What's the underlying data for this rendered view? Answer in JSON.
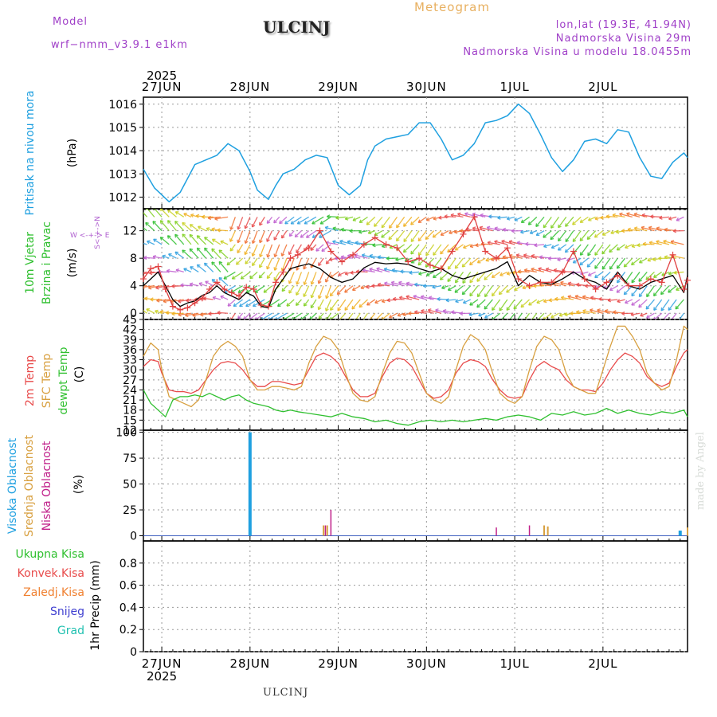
{
  "header": {
    "model_label": "Model",
    "model_name": "wrf−nmm_v3.9.1  e1km",
    "station": "ULCINJ",
    "title": "Meteogram",
    "coords": "lon,lat (19.3E, 41.94N)",
    "elevation": "Nadmorska Visina 29m",
    "model_elevation": "Nadmorska Visina u modelu 18.0455m"
  },
  "footer": {
    "station": "ULCINJ",
    "credit": "made by Angel"
  },
  "colors": {
    "pressure": "#1fa0e0",
    "t2m": "#e84a4a",
    "sfc": "#d8a040",
    "dewpt": "#30c030",
    "cloud_high": "#1fa0e0",
    "cloud_mid": "#d8a040",
    "cloud_low": "#c0208a",
    "wind_speed": "#000000",
    "wind_gust": "#e04040",
    "compass": "#b060d0",
    "precip_total": "#30c030",
    "precip_conv": "#e84a4a",
    "precip_frz": "#f08030",
    "precip_snow": "#4040d0",
    "precip_hail": "#20c0b0"
  },
  "chart_data": [
    {
      "type": "line",
      "panel": "pressure",
      "ylabel_lines": [
        "Pritisak na nivou mora",
        "(hPa)"
      ],
      "ylim": [
        1011.5,
        1016.3
      ],
      "yticks": [
        "1012",
        "1013",
        "1014",
        "1015",
        "1016"
      ],
      "grid": true,
      "x_unit": "hours from 27 JUN 2025 00 UTC",
      "xlim": [
        -5,
        143
      ],
      "x_dates": [
        "27JUN",
        "28JUN",
        "29JUN",
        "30JUN",
        "1JUL",
        "2JUL"
      ],
      "x_year": "2025",
      "series": [
        {
          "name": "Pritisak na nivou mora",
          "x": [
            -5,
            -2,
            2,
            5,
            7,
            9,
            12,
            15,
            18,
            21,
            24,
            26,
            29,
            31,
            33,
            36,
            39,
            42,
            45,
            48,
            51,
            54,
            56,
            58,
            61,
            64,
            67,
            70,
            73,
            76,
            79,
            82,
            85,
            88,
            91,
            94,
            97,
            100,
            103,
            106,
            109,
            112,
            115,
            118,
            121,
            124,
            127,
            130,
            133,
            136,
            139,
            142,
            143
          ],
          "values": [
            1013.2,
            1012.4,
            1011.8,
            1012.2,
            1012.8,
            1013.4,
            1013.6,
            1013.8,
            1014.3,
            1014.0,
            1013.1,
            1012.3,
            1011.9,
            1012.5,
            1013.0,
            1013.2,
            1013.6,
            1013.8,
            1013.7,
            1012.5,
            1012.1,
            1012.5,
            1013.6,
            1014.2,
            1014.5,
            1014.6,
            1014.7,
            1015.2,
            1015.2,
            1014.5,
            1013.6,
            1013.8,
            1014.3,
            1015.2,
            1015.3,
            1015.5,
            1016.0,
            1015.6,
            1014.7,
            1013.7,
            1013.1,
            1013.6,
            1014.4,
            1014.5,
            1014.3,
            1014.9,
            1014.8,
            1013.7,
            1012.9,
            1012.8,
            1013.5,
            1013.9,
            1013.7
          ]
        }
      ]
    },
    {
      "type": "line",
      "panel": "wind",
      "ylabel_lines": [
        "10m Vjetar",
        "Brzina i Pravac",
        "(m/s)"
      ],
      "compass_label": "W  <-+->  E",
      "compass_vert": "S<-+->N",
      "ylim": [
        -0.9,
        15.2
      ],
      "yticks": [
        "0",
        "4",
        "8",
        "12"
      ],
      "grid": true,
      "xlim": [
        -5,
        143
      ],
      "series": [
        {
          "name": "brzina",
          "x": [
            -5,
            -3,
            -1,
            1,
            3,
            5,
            7,
            9,
            11,
            13,
            15,
            17,
            19,
            21,
            23,
            25,
            27,
            29,
            31,
            33,
            35,
            37,
            40,
            43,
            46,
            49,
            52,
            55,
            58,
            61,
            64,
            67,
            70,
            73,
            76,
            79,
            82,
            85,
            88,
            91,
            94,
            97,
            100,
            103,
            106,
            109,
            112,
            115,
            118,
            121,
            124,
            127,
            130,
            133,
            136,
            139,
            142,
            143
          ],
          "values": [
            4,
            5,
            6,
            4,
            2,
            1,
            1.5,
            1.8,
            2.6,
            3.0,
            4.0,
            3.0,
            2.5,
            2.0,
            3.0,
            2.5,
            1.0,
            0.8,
            3.5,
            5.0,
            6.5,
            6.8,
            7.2,
            6.5,
            5.2,
            4.5,
            5.0,
            6.6,
            7.4,
            7.2,
            7.3,
            7.1,
            6.5,
            6.0,
            6.5,
            5.5,
            5.0,
            5.5,
            6.0,
            6.5,
            7.5,
            4.0,
            5.5,
            4.5,
            4.2,
            5.0,
            6.0,
            5.0,
            4.5,
            3.5,
            6.0,
            4.0,
            3.5,
            4.5,
            5.0,
            5.5,
            3.0,
            5.5
          ]
        },
        {
          "name": "udari",
          "x": [
            -5,
            -3,
            -1,
            1,
            3,
            5,
            7,
            9,
            11,
            13,
            15,
            17,
            19,
            21,
            23,
            25,
            27,
            29,
            31,
            33,
            35,
            37,
            40,
            43,
            46,
            49,
            52,
            55,
            58,
            61,
            64,
            67,
            70,
            73,
            76,
            79,
            82,
            85,
            88,
            91,
            94,
            97,
            100,
            103,
            106,
            109,
            112,
            115,
            118,
            121,
            124,
            127,
            130,
            133,
            136,
            139,
            142,
            143
          ],
          "values": [
            5,
            6.5,
            6.8,
            3.5,
            1,
            0.5,
            0.8,
            1.5,
            2.2,
            3.5,
            4.5,
            3.5,
            3.0,
            2.5,
            3.8,
            3.5,
            1.2,
            1.0,
            4.5,
            6.0,
            8.0,
            8.5,
            9.5,
            12.0,
            9.0,
            7.5,
            8.5,
            10.0,
            11.0,
            10.0,
            9.5,
            7.5,
            8.0,
            7.0,
            6.5,
            9.0,
            11.5,
            14.0,
            9.0,
            8.0,
            9.5,
            5.0,
            4.0,
            4.5,
            4.5,
            6.0,
            9.0,
            5.0,
            3.5,
            4.5,
            5.5,
            4.0,
            4.0,
            5.0,
            4.5,
            8.5,
            3.5,
            4.8
          ]
        }
      ]
    },
    {
      "type": "line",
      "panel": "temperature",
      "ylabel_lines": [
        "2m Temp",
        "SFC Temp",
        "dewpt Temp",
        "(C)"
      ],
      "ylim": [
        12,
        45
      ],
      "yticks": [
        "12",
        "15",
        "18",
        "21",
        "24",
        "27",
        "30",
        "33",
        "36",
        "39",
        "42",
        "45"
      ],
      "grid": true,
      "xlim": [
        -5,
        143
      ],
      "series": [
        {
          "name": "2m Temp",
          "x": [
            -5,
            -3,
            -1,
            0,
            2,
            4,
            6,
            8,
            10,
            12,
            14,
            16,
            18,
            20,
            22,
            24,
            26,
            28,
            30,
            32,
            34,
            36,
            38,
            40,
            42,
            44,
            46,
            48,
            50,
            52,
            54,
            56,
            58,
            60,
            62,
            64,
            66,
            68,
            70,
            72,
            74,
            76,
            78,
            80,
            82,
            84,
            86,
            88,
            90,
            92,
            94,
            96,
            98,
            100,
            102,
            104,
            106,
            108,
            110,
            112,
            114,
            116,
            118,
            120,
            122,
            124,
            126,
            128,
            130,
            132,
            134,
            136,
            138,
            140,
            142,
            143
          ],
          "values": [
            31,
            33,
            32.5,
            29,
            24,
            23.5,
            23.5,
            23,
            24,
            27,
            30,
            32,
            32.5,
            32,
            30,
            27,
            25,
            25,
            26.5,
            26.5,
            26,
            25.5,
            26,
            30,
            34,
            35,
            34,
            32,
            28,
            24,
            22,
            22,
            23,
            28,
            32,
            33.5,
            33,
            31,
            27,
            23,
            21.5,
            22,
            24,
            29,
            32,
            33,
            32.5,
            31,
            27,
            24,
            22,
            21.5,
            22,
            27,
            31,
            32.5,
            31,
            30,
            27,
            25,
            24,
            24,
            23.5,
            26,
            30,
            33,
            35,
            34,
            32,
            28,
            26,
            25,
            26,
            31,
            35,
            36
          ]
        },
        {
          "name": "SFC Temp",
          "x": [
            -5,
            -3,
            -1,
            0,
            2,
            4,
            6,
            8,
            10,
            12,
            14,
            16,
            18,
            20,
            22,
            24,
            26,
            28,
            30,
            32,
            34,
            36,
            38,
            40,
            42,
            44,
            46,
            48,
            50,
            52,
            54,
            56,
            58,
            60,
            62,
            64,
            66,
            68,
            70,
            72,
            74,
            76,
            78,
            80,
            82,
            84,
            86,
            88,
            90,
            92,
            94,
            96,
            98,
            100,
            102,
            104,
            106,
            108,
            110,
            112,
            114,
            116,
            118,
            120,
            122,
            124,
            126,
            128,
            130,
            132,
            134,
            136,
            138,
            140,
            142,
            143
          ],
          "values": [
            34,
            38,
            36,
            30,
            22,
            21,
            20,
            19,
            21,
            27,
            34,
            37,
            38.5,
            37,
            34,
            27,
            24,
            24,
            25,
            25,
            24.5,
            24,
            25,
            32,
            37,
            40,
            39,
            36,
            29,
            23,
            21,
            20.5,
            22,
            29,
            35,
            38.5,
            38,
            35,
            29,
            23,
            21,
            20,
            22,
            30,
            37,
            40.5,
            39,
            36,
            29,
            23,
            21,
            20,
            22,
            30,
            37,
            40,
            39,
            36,
            29,
            25,
            24,
            23,
            23,
            30,
            37,
            43,
            43,
            40,
            36,
            29,
            26,
            24,
            25,
            33,
            43,
            42
          ]
        },
        {
          "name": "dewpt Temp",
          "x": [
            -5,
            -3,
            -1,
            1,
            3,
            5,
            7,
            9,
            11,
            13,
            15,
            17,
            19,
            21,
            23,
            25,
            27,
            29,
            31,
            33,
            35,
            37,
            40,
            43,
            46,
            49,
            52,
            55,
            58,
            61,
            64,
            67,
            70,
            73,
            76,
            79,
            82,
            85,
            88,
            91,
            94,
            97,
            100,
            103,
            106,
            109,
            112,
            115,
            118,
            121,
            124,
            127,
            130,
            133,
            136,
            139,
            142,
            143
          ],
          "values": [
            24,
            20,
            18,
            16,
            21,
            22,
            22,
            22.5,
            22,
            23,
            22,
            21,
            22,
            22.5,
            21,
            20,
            19.5,
            19,
            18,
            17.5,
            18,
            17.5,
            17,
            16.5,
            16,
            17,
            16,
            15.5,
            14.5,
            15,
            14,
            13.5,
            14.5,
            15,
            14.5,
            15,
            14.5,
            15,
            15.5,
            15,
            16,
            16.5,
            16,
            15,
            17,
            16.5,
            17.5,
            16.5,
            17,
            18.5,
            17,
            18,
            17,
            16.5,
            17.5,
            17,
            18,
            16
          ]
        }
      ]
    },
    {
      "type": "bar",
      "panel": "clouds",
      "ylabel_lines": [
        "Visoka Oblacnost",
        "Srednja Oblacnost",
        "Niska Oblacnost",
        "(%)"
      ],
      "ylim": [
        -5,
        102
      ],
      "yticks": [
        "0",
        "25",
        "50",
        "75",
        "100"
      ],
      "grid": true,
      "xlim": [
        -5,
        143
      ],
      "series": [
        {
          "name": "Visoka Oblacnost",
          "x": [
            24,
            141
          ],
          "values": [
            100,
            5
          ]
        },
        {
          "name": "Srednja Oblacnost",
          "x": [
            44,
            45,
            104,
            105,
            143
          ],
          "values": [
            10,
            10,
            10,
            9,
            8
          ]
        },
        {
          "name": "Niska Oblacnost",
          "x": [
            44.5,
            46,
            91,
            100
          ],
          "values": [
            10,
            25,
            8,
            10
          ]
        }
      ]
    },
    {
      "type": "bar",
      "panel": "precip",
      "ylabel_lines": [
        "1hr Precip (mm)"
      ],
      "legend_labels": [
        "Ukupna Kisa",
        "Konvek.Kisa",
        "Zaledj.Kisa",
        "Snijeg",
        "Grad"
      ],
      "ylim": [
        0,
        1.0
      ],
      "yticks": [
        "0",
        "0.2",
        "0.4",
        "0.6",
        "0.8"
      ],
      "grid": true,
      "xlim": [
        -5,
        143
      ],
      "series": []
    }
  ]
}
